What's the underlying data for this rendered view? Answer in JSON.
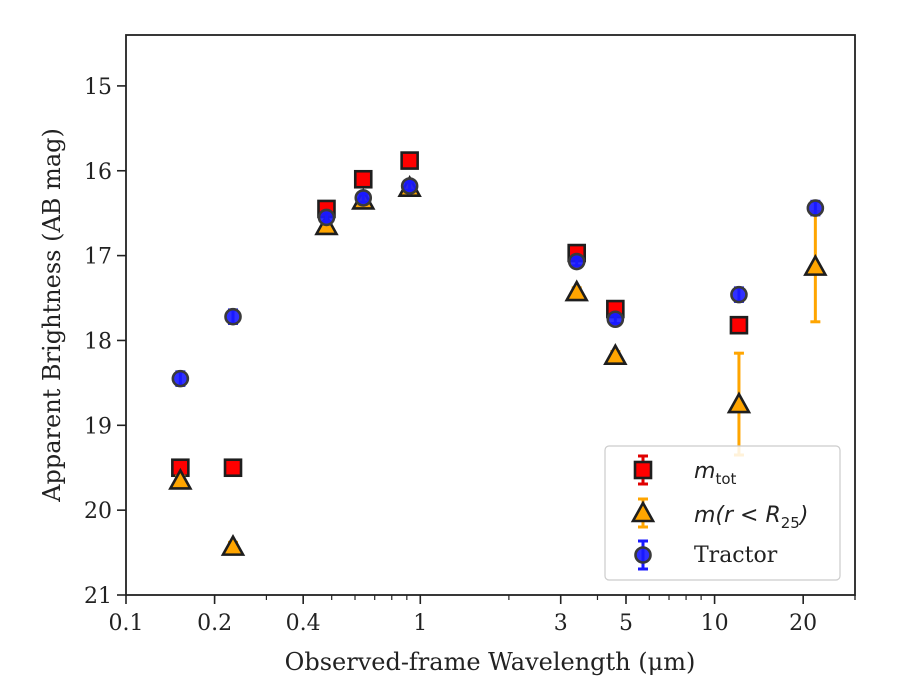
{
  "colors": {
    "mtot_fill": "#ff0000",
    "mtot_err": "#e00000",
    "mr25_fill": "#ffa500",
    "mr25_err": "#ffa500",
    "tractor_fill": "#1a1aff",
    "tractor_edge": "#3a3a3a",
    "tractor_err": "#1a1aff",
    "marker_edge": "#1e1e1e",
    "axis": "#222222"
  },
  "chart_data": {
    "type": "scatter",
    "xlabel": "Observed-frame Wavelength (μm)",
    "ylabel": "Apparent Brightness (AB mag)",
    "x_scale": "log",
    "xlim": [
      0.1,
      30
    ],
    "ylim": [
      21,
      14.4
    ],
    "y_inverted": true,
    "x_ticks": [
      {
        "value": 0.1,
        "label": "0.1"
      },
      {
        "value": 0.2,
        "label": "0.2"
      },
      {
        "value": 0.4,
        "label": "0.4"
      },
      {
        "value": 1,
        "label": "1"
      },
      {
        "value": 3,
        "label": "3"
      },
      {
        "value": 5,
        "label": "5"
      },
      {
        "value": 10,
        "label": "10"
      },
      {
        "value": 20,
        "label": "20"
      }
    ],
    "y_ticks": [
      {
        "value": 15,
        "label": "15"
      },
      {
        "value": 16,
        "label": "16"
      },
      {
        "value": 17,
        "label": "17"
      },
      {
        "value": 18,
        "label": "18"
      },
      {
        "value": 19,
        "label": "19"
      },
      {
        "value": 20,
        "label": "20"
      },
      {
        "value": 21,
        "label": "21"
      }
    ],
    "grid": false,
    "legend_position": "lower-right",
    "series": [
      {
        "key": "mtot",
        "name": "m_tot",
        "marker": "square",
        "points": [
          {
            "x": 0.153,
            "y": 19.5,
            "err": 0.05
          },
          {
            "x": 0.231,
            "y": 19.5,
            "err": 0.05
          },
          {
            "x": 0.48,
            "y": 16.45,
            "err": 0.05
          },
          {
            "x": 0.64,
            "y": 16.1,
            "err": 0.05
          },
          {
            "x": 0.92,
            "y": 15.88,
            "err": 0.05
          },
          {
            "x": 3.4,
            "y": 16.97,
            "err": 0.05
          },
          {
            "x": 4.6,
            "y": 17.63,
            "err": 0.05
          },
          {
            "x": 12.1,
            "y": 17.82,
            "err": 0.05
          }
        ]
      },
      {
        "key": "mr25",
        "name": "m(r < R25)",
        "marker": "triangle",
        "points": [
          {
            "x": 0.153,
            "y": 19.65,
            "err": 0.05
          },
          {
            "x": 0.231,
            "y": 20.43,
            "err": 0.05
          },
          {
            "x": 0.48,
            "y": 16.65,
            "err": 0.05
          },
          {
            "x": 0.64,
            "y": 16.35,
            "err": 0.05
          },
          {
            "x": 0.92,
            "y": 16.2,
            "err": 0.05
          },
          {
            "x": 3.4,
            "y": 17.43,
            "err": 0.05
          },
          {
            "x": 4.6,
            "y": 18.18,
            "err": 0.05
          },
          {
            "x": 12.1,
            "y": 18.75,
            "err": 0.6
          },
          {
            "x": 22.0,
            "y": 17.13,
            "err": 0.65
          }
        ]
      },
      {
        "key": "tractor",
        "name": "Tractor",
        "marker": "circle",
        "points": [
          {
            "x": 0.153,
            "y": 18.45,
            "err": 0.08
          },
          {
            "x": 0.231,
            "y": 17.72,
            "err": 0.08
          },
          {
            "x": 0.48,
            "y": 16.55,
            "err": 0.05
          },
          {
            "x": 0.64,
            "y": 16.32,
            "err": 0.05
          },
          {
            "x": 0.92,
            "y": 16.18,
            "err": 0.05
          },
          {
            "x": 3.4,
            "y": 17.07,
            "err": 0.05
          },
          {
            "x": 4.6,
            "y": 17.75,
            "err": 0.05
          },
          {
            "x": 12.1,
            "y": 17.46,
            "err": 0.08
          },
          {
            "x": 22.0,
            "y": 16.44,
            "err": 0.08
          }
        ]
      }
    ]
  },
  "legend": {
    "mtot_base": "m",
    "mtot_sub": "tot",
    "mr25_pre": "m(r < R",
    "mr25_sub": "25",
    "mr25_post": ")",
    "tractor": "Tractor"
  }
}
